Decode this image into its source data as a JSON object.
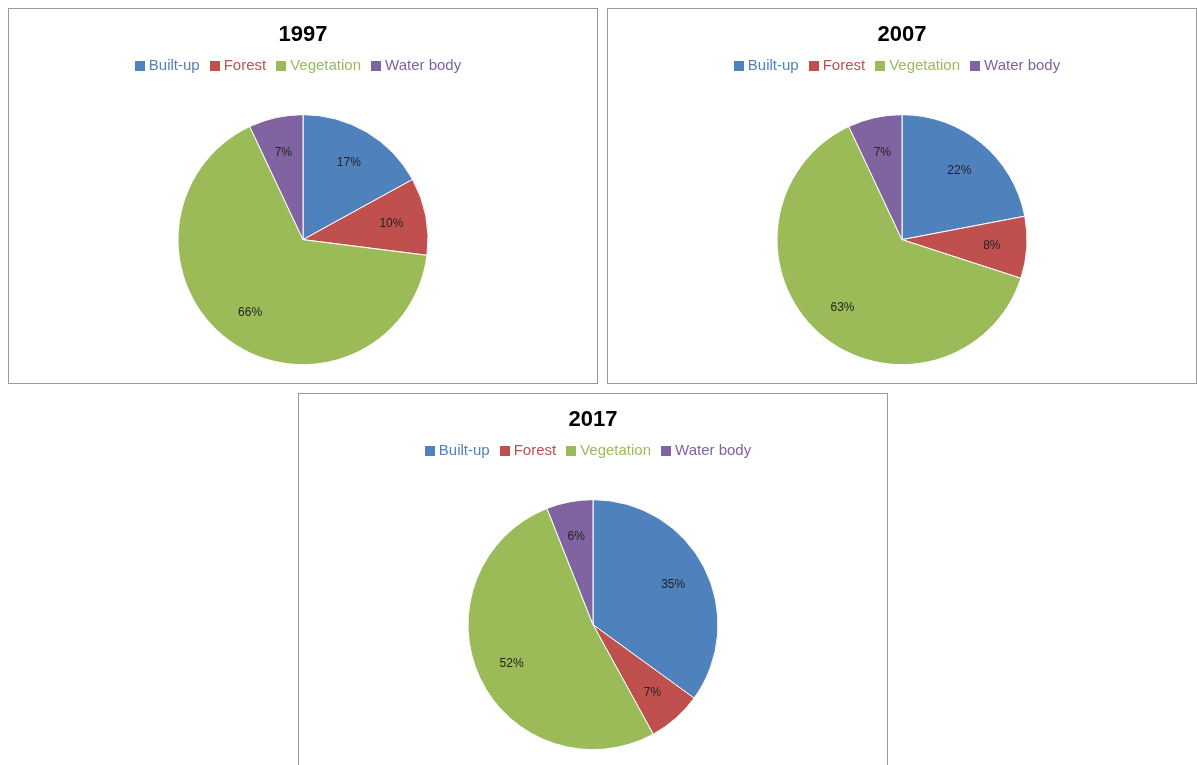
{
  "chart_data": [
    {
      "type": "pie",
      "title": "1997",
      "categories": [
        "Built-up",
        "Forest",
        "Vegetation",
        "Water body"
      ],
      "values": [
        17,
        10,
        66,
        7
      ],
      "colors": [
        "#4f81bd",
        "#c0504d",
        "#9bbb59",
        "#8064a2"
      ],
      "value_labels": [
        "17%",
        "10%",
        "66%",
        "7%"
      ],
      "legend": "top"
    },
    {
      "type": "pie",
      "title": "2007",
      "categories": [
        "Built-up",
        "Forest",
        "Vegetation",
        "Water body"
      ],
      "values": [
        22,
        8,
        63,
        7
      ],
      "colors": [
        "#4f81bd",
        "#c0504d",
        "#9bbb59",
        "#8064a2"
      ],
      "value_labels": [
        "22%",
        "8%",
        "63%",
        "7%"
      ],
      "legend": "top"
    },
    {
      "type": "pie",
      "title": "2017",
      "categories": [
        "Built-up",
        "Forest",
        "Vegetation",
        "Water body"
      ],
      "values": [
        35,
        7,
        52,
        6
      ],
      "colors": [
        "#4f81bd",
        "#c0504d",
        "#9bbb59",
        "#8064a2"
      ],
      "value_labels": [
        "35%",
        "7%",
        "52%",
        "6%"
      ],
      "legend": "top"
    }
  ]
}
